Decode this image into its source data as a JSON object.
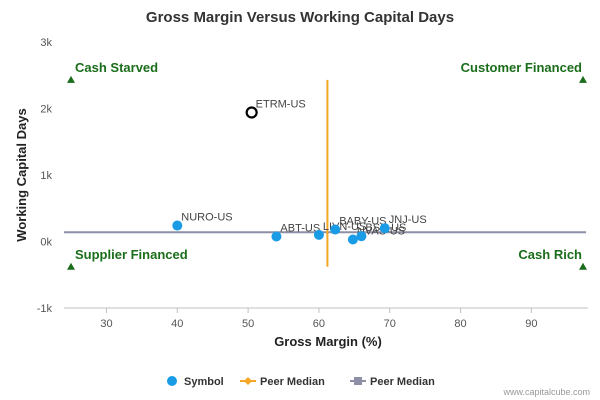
{
  "chart_data": {
    "type": "scatter",
    "title": "Gross Margin Versus Working Capital Days",
    "xlabel": "Gross Margin (%)",
    "ylabel": "Working Capital Days",
    "xlim": [
      24,
      98
    ],
    "ylim": [
      -1000,
      3000
    ],
    "x_ticks": [
      30,
      40,
      50,
      60,
      70,
      80,
      90
    ],
    "y_ticks": [
      {
        "value": -1000,
        "label": "-1k"
      },
      {
        "value": 0,
        "label": "0k"
      },
      {
        "value": 1000,
        "label": "1k"
      },
      {
        "value": 2000,
        "label": "2k"
      },
      {
        "value": 3000,
        "label": "3k"
      }
    ],
    "grid": false,
    "points": [
      {
        "label": "ETRM-US",
        "x": 50.5,
        "y": 1940,
        "highlight": true
      },
      {
        "label": "NURO-US",
        "x": 40.0,
        "y": 240
      },
      {
        "label": "ABT-US",
        "x": 54.0,
        "y": 75
      },
      {
        "label": "LIVN-US",
        "x": 60.0,
        "y": 100
      },
      {
        "label": "BABY-US",
        "x": 62.3,
        "y": 180
      },
      {
        "label": "NVAS-US",
        "x": 64.8,
        "y": 30
      },
      {
        "label": "BSX-US",
        "x": 66.0,
        "y": 80
      },
      {
        "label": "JNJ-US",
        "x": 69.3,
        "y": 200
      }
    ],
    "peer_median_x": 61.2,
    "peer_median_y": 140,
    "quadrants": {
      "top_left": "Cash Starved",
      "top_right": "Customer Financed",
      "bottom_left": "Supplier Financed",
      "bottom_right": "Cash Rich"
    },
    "legend": [
      {
        "label": "Symbol",
        "marker": "circle",
        "color": "#1a9be6"
      },
      {
        "label": "Peer Median",
        "marker": "diamond-line",
        "color": "#f5a623"
      },
      {
        "label": "Peer Median",
        "marker": "square-line",
        "color": "#8c8fa6"
      }
    ],
    "legend_position": "bottom",
    "colors": {
      "point": "#1a9be6",
      "highlight_stroke": "#000000",
      "median_x_line": "#f5a623",
      "median_y_line": "#8c8fa6",
      "quadrant_text": "#1a6d1a"
    }
  },
  "credit": "www.capitalcube.com"
}
